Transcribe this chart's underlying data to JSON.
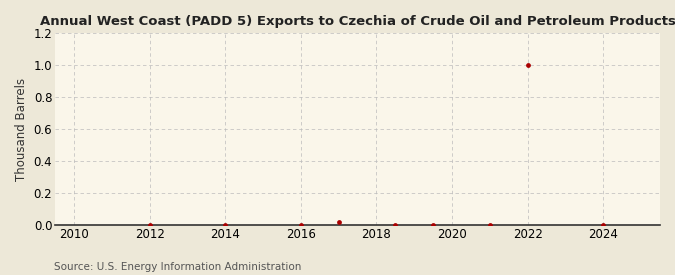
{
  "title": "Annual West Coast (PADD 5) Exports to Czechia of Crude Oil and Petroleum Products",
  "ylabel": "Thousand Barrels",
  "source": "Source: U.S. Energy Information Administration",
  "background_color": "#ede8d8",
  "plot_background_color": "#faf6ea",
  "grid_color": "#bbbbbb",
  "point_color": "#aa0000",
  "xlim": [
    2009.5,
    2025.5
  ],
  "ylim": [
    0.0,
    1.2
  ],
  "xticks": [
    2010,
    2012,
    2014,
    2016,
    2018,
    2020,
    2022,
    2024
  ],
  "yticks": [
    0.0,
    0.2,
    0.4,
    0.6,
    0.8,
    1.0,
    1.2
  ],
  "data_x": [
    2012,
    2014,
    2016,
    2017.0,
    2018.5,
    2019.5,
    2021.0,
    2022,
    2024
  ],
  "data_y": [
    0.0,
    0.0,
    0.0,
    0.02,
    0.0,
    0.0,
    0.0,
    1.0,
    0.0
  ],
  "title_fontsize": 9.5,
  "axis_fontsize": 8.5,
  "source_fontsize": 7.5,
  "point_size": 12
}
